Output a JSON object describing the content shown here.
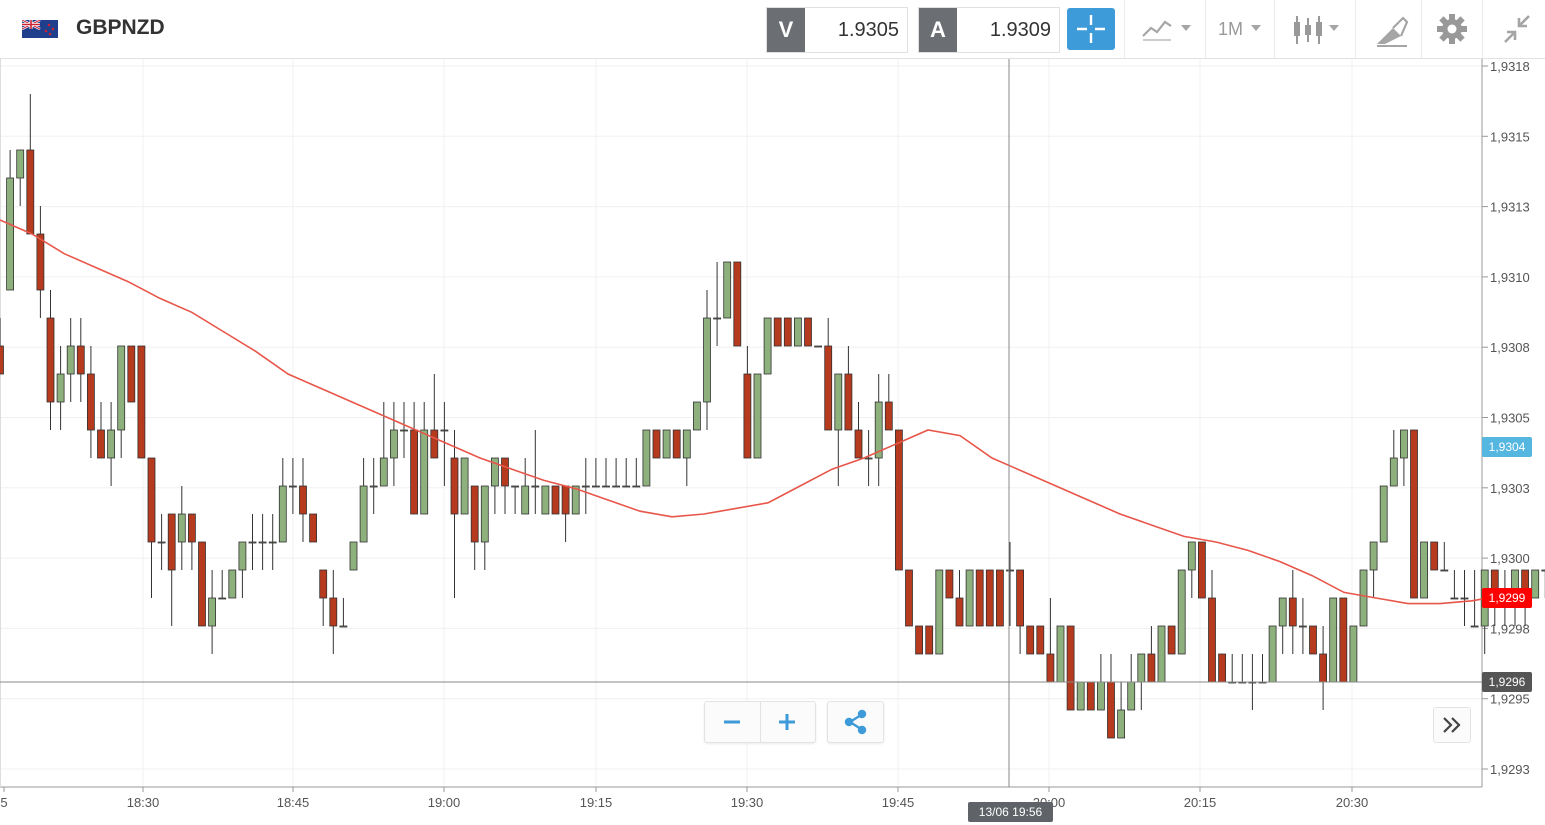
{
  "instrument": {
    "symbol": "GBPNZD",
    "flag_icon": "gb-nz-flag-icon"
  },
  "quotes": {
    "bid": {
      "label": "V",
      "value": "1.9305"
    },
    "ask": {
      "label": "A",
      "value": "1.9309"
    }
  },
  "toolbar": {
    "timeframe": "1M"
  },
  "price_axis": {
    "labels": [
      "1,9318",
      "1,9315",
      "1,9313",
      "1,9310",
      "1,9308",
      "1,9305",
      "1,9303",
      "1,9300",
      "1,9298",
      "1,9295",
      "1,9293"
    ]
  },
  "time_axis": {
    "labels": [
      "5",
      "18:30",
      "18:45",
      "19:00",
      "19:15",
      "19:30",
      "19:45",
      "20:00",
      "20:15",
      "20:30"
    ]
  },
  "markers": {
    "ma_last": "1,9304",
    "last_price": "1,9299",
    "crosshair_price": "1,9296",
    "crosshair_time": "13/06 19:56"
  },
  "colors": {
    "up": "#8db07d",
    "down": "#b53a1e",
    "ma": "#e8564a",
    "accent": "#3e9bd9",
    "last": "#ff0000",
    "ma_label": "#55b7e0"
  },
  "chart_data": {
    "type": "candlestick",
    "interval": "1M",
    "ylim": [
      1.9292,
      1.9318
    ],
    "candles": [
      [
        1.9308,
        1.9309,
        1.9307,
        1.9307
      ],
      [
        1.931,
        1.9315,
        1.931,
        1.9314
      ],
      [
        1.9314,
        1.9315,
        1.9313,
        1.9315
      ],
      [
        1.9315,
        1.9317,
        1.9312,
        1.9312
      ],
      [
        1.9312,
        1.9313,
        1.9309,
        1.931
      ],
      [
        1.9309,
        1.931,
        1.9305,
        1.9306
      ],
      [
        1.9306,
        1.9308,
        1.9305,
        1.9307
      ],
      [
        1.9307,
        1.9309,
        1.9306,
        1.9308
      ],
      [
        1.9308,
        1.9309,
        1.9306,
        1.9307
      ],
      [
        1.9307,
        1.9308,
        1.9304,
        1.9305
      ],
      [
        1.9305,
        1.9306,
        1.9304,
        1.9304
      ],
      [
        1.9304,
        1.9306,
        1.9303,
        1.9305
      ],
      [
        1.9305,
        1.9308,
        1.9304,
        1.9308
      ],
      [
        1.9308,
        1.9308,
        1.9306,
        1.9306
      ],
      [
        1.9308,
        1.9308,
        1.9304,
        1.9304
      ],
      [
        1.9304,
        1.9304,
        1.9299,
        1.9301
      ],
      [
        1.9301,
        1.9302,
        1.93,
        1.9301
      ],
      [
        1.9302,
        1.9302,
        1.9298,
        1.93
      ],
      [
        1.9301,
        1.9303,
        1.93,
        1.9302
      ],
      [
        1.9302,
        1.9302,
        1.93,
        1.9301
      ],
      [
        1.9301,
        1.9301,
        1.9298,
        1.9298
      ],
      [
        1.9298,
        1.93,
        1.9297,
        1.9299
      ],
      [
        1.9299,
        1.93,
        1.9299,
        1.9299
      ],
      [
        1.9299,
        1.93,
        1.9299,
        1.93
      ],
      [
        1.93,
        1.9301,
        1.9299,
        1.9301
      ],
      [
        1.9301,
        1.9302,
        1.93,
        1.9301
      ],
      [
        1.9301,
        1.9302,
        1.93,
        1.9301
      ],
      [
        1.9301,
        1.9302,
        1.93,
        1.9301
      ],
      [
        1.9301,
        1.9304,
        1.9301,
        1.9303
      ],
      [
        1.9303,
        1.9304,
        1.9302,
        1.9303
      ],
      [
        1.9303,
        1.9304,
        1.9301,
        1.9302
      ],
      [
        1.9302,
        1.9302,
        1.9301,
        1.9301
      ],
      [
        1.93,
        1.93,
        1.9298,
        1.9299
      ],
      [
        1.9299,
        1.93,
        1.9297,
        1.9298
      ],
      [
        1.9298,
        1.9299,
        1.9298,
        1.9298
      ],
      [
        1.93,
        1.9301,
        1.93,
        1.9301
      ],
      [
        1.9301,
        1.9304,
        1.9301,
        1.9303
      ],
      [
        1.9303,
        1.9304,
        1.9302,
        1.9303
      ],
      [
        1.9303,
        1.9306,
        1.9303,
        1.9304
      ],
      [
        1.9304,
        1.9306,
        1.9303,
        1.9305
      ],
      [
        1.9305,
        1.9306,
        1.9304,
        1.9305
      ],
      [
        1.9305,
        1.9306,
        1.9302,
        1.9302
      ],
      [
        1.9302,
        1.9306,
        1.9302,
        1.9305
      ],
      [
        1.9305,
        1.9307,
        1.9304,
        1.9304
      ],
      [
        1.9305,
        1.9306,
        1.9303,
        1.9305
      ],
      [
        1.9304,
        1.9305,
        1.9299,
        1.9302
      ],
      [
        1.9302,
        1.9304,
        1.9302,
        1.9304
      ],
      [
        1.9303,
        1.9303,
        1.93,
        1.9301
      ],
      [
        1.9301,
        1.9303,
        1.93,
        1.9303
      ],
      [
        1.9303,
        1.9304,
        1.9302,
        1.9304
      ],
      [
        1.9304,
        1.9304,
        1.9302,
        1.9303
      ],
      [
        1.9303,
        1.9303,
        1.9302,
        1.9303
      ],
      [
        1.9302,
        1.9304,
        1.9302,
        1.9303
      ],
      [
        1.9303,
        1.9305,
        1.9302,
        1.9303
      ],
      [
        1.9302,
        1.9303,
        1.9302,
        1.9303
      ],
      [
        1.9303,
        1.9303,
        1.9302,
        1.9302
      ],
      [
        1.9303,
        1.9303,
        1.9301,
        1.9302
      ],
      [
        1.9302,
        1.9303,
        1.9302,
        1.9303
      ],
      [
        1.9303,
        1.9304,
        1.9302,
        1.9303
      ],
      [
        1.9303,
        1.9304,
        1.9303,
        1.9303
      ],
      [
        1.9303,
        1.9304,
        1.9303,
        1.9303
      ],
      [
        1.9303,
        1.9304,
        1.9303,
        1.9303
      ],
      [
        1.9303,
        1.9304,
        1.9303,
        1.9303
      ],
      [
        1.9303,
        1.9304,
        1.9303,
        1.9303
      ],
      [
        1.9303,
        1.9305,
        1.9303,
        1.9305
      ],
      [
        1.9305,
        1.9305,
        1.9304,
        1.9304
      ],
      [
        1.9304,
        1.9305,
        1.9304,
        1.9305
      ],
      [
        1.9305,
        1.9305,
        1.9304,
        1.9304
      ],
      [
        1.9304,
        1.9305,
        1.9303,
        1.9305
      ],
      [
        1.9305,
        1.9306,
        1.9305,
        1.9306
      ],
      [
        1.9306,
        1.931,
        1.9305,
        1.9309
      ],
      [
        1.9309,
        1.9311,
        1.9308,
        1.9309
      ],
      [
        1.9309,
        1.9311,
        1.9309,
        1.9311
      ],
      [
        1.9311,
        1.9311,
        1.9308,
        1.9308
      ],
      [
        1.9307,
        1.9308,
        1.9304,
        1.9304
      ],
      [
        1.9304,
        1.9307,
        1.9304,
        1.9307
      ],
      [
        1.9307,
        1.9309,
        1.9307,
        1.9309
      ],
      [
        1.9309,
        1.9309,
        1.9308,
        1.9308
      ],
      [
        1.9309,
        1.9309,
        1.9308,
        1.9308
      ],
      [
        1.9308,
        1.9309,
        1.9308,
        1.9309
      ],
      [
        1.9309,
        1.9309,
        1.9308,
        1.9308
      ],
      [
        1.9308,
        1.9308,
        1.9308,
        1.9308
      ],
      [
        1.9308,
        1.9309,
        1.9305,
        1.9305
      ],
      [
        1.9305,
        1.9307,
        1.9303,
        1.9307
      ],
      [
        1.9307,
        1.9308,
        1.9305,
        1.9305
      ],
      [
        1.9305,
        1.9306,
        1.9304,
        1.9304
      ],
      [
        1.9304,
        1.9305,
        1.9303,
        1.9304
      ],
      [
        1.9304,
        1.9307,
        1.9303,
        1.9306
      ],
      [
        1.9306,
        1.9307,
        1.9305,
        1.9305
      ],
      [
        1.9305,
        1.9305,
        1.93,
        1.93
      ],
      [
        1.93,
        1.93,
        1.9298,
        1.9298
      ],
      [
        1.9298,
        1.9298,
        1.9297,
        1.9297
      ],
      [
        1.9298,
        1.9298,
        1.9297,
        1.9297
      ],
      [
        1.9297,
        1.93,
        1.9297,
        1.93
      ],
      [
        1.93,
        1.93,
        1.9299,
        1.9299
      ],
      [
        1.9299,
        1.93,
        1.9298,
        1.9298
      ],
      [
        1.9298,
        1.93,
        1.9298,
        1.93
      ],
      [
        1.93,
        1.93,
        1.9298,
        1.9298
      ],
      [
        1.93,
        1.93,
        1.9298,
        1.9298
      ],
      [
        1.93,
        1.93,
        1.9298,
        1.9298
      ],
      [
        1.93,
        1.9301,
        1.9298,
        1.93
      ],
      [
        1.93,
        1.93,
        1.9297,
        1.9298
      ],
      [
        1.9298,
        1.9298,
        1.9297,
        1.9297
      ],
      [
        1.9298,
        1.9298,
        1.9297,
        1.9297
      ],
      [
        1.9297,
        1.9299,
        1.9296,
        1.9296
      ],
      [
        1.9296,
        1.9298,
        1.9296,
        1.9298
      ],
      [
        1.9298,
        1.9298,
        1.9295,
        1.9295
      ],
      [
        1.9295,
        1.9296,
        1.9295,
        1.9296
      ],
      [
        1.9296,
        1.9296,
        1.9295,
        1.9295
      ],
      [
        1.9295,
        1.9297,
        1.9295,
        1.9296
      ],
      [
        1.9296,
        1.9297,
        1.9294,
        1.9294
      ],
      [
        1.9294,
        1.9296,
        1.9294,
        1.9295
      ],
      [
        1.9295,
        1.9297,
        1.9295,
        1.9296
      ],
      [
        1.9296,
        1.9297,
        1.9295,
        1.9297
      ],
      [
        1.9297,
        1.9298,
        1.9296,
        1.9296
      ],
      [
        1.9296,
        1.9298,
        1.9296,
        1.9298
      ],
      [
        1.9298,
        1.9298,
        1.9297,
        1.9297
      ],
      [
        1.9297,
        1.93,
        1.9297,
        1.93
      ],
      [
        1.93,
        1.9301,
        1.9299,
        1.9301
      ],
      [
        1.9301,
        1.9301,
        1.9299,
        1.9299
      ],
      [
        1.9299,
        1.93,
        1.9296,
        1.9296
      ],
      [
        1.9297,
        1.9297,
        1.9296,
        1.9296
      ],
      [
        1.9296,
        1.9297,
        1.9296,
        1.9296
      ],
      [
        1.9296,
        1.9297,
        1.9296,
        1.9296
      ],
      [
        1.9296,
        1.9297,
        1.9295,
        1.9296
      ],
      [
        1.9296,
        1.9297,
        1.9296,
        1.9296
      ],
      [
        1.9296,
        1.9298,
        1.9296,
        1.9298
      ],
      [
        1.9298,
        1.9299,
        1.9297,
        1.9299
      ],
      [
        1.9299,
        1.93,
        1.9297,
        1.9298
      ],
      [
        1.9298,
        1.9299,
        1.9297,
        1.9298
      ],
      [
        1.9298,
        1.9298,
        1.9297,
        1.9297
      ],
      [
        1.9297,
        1.9298,
        1.9295,
        1.9296
      ],
      [
        1.9296,
        1.9299,
        1.9296,
        1.9299
      ],
      [
        1.9299,
        1.9299,
        1.9296,
        1.9296
      ],
      [
        1.9296,
        1.9298,
        1.9296,
        1.9298
      ],
      [
        1.9298,
        1.93,
        1.9298,
        1.93
      ],
      [
        1.93,
        1.9301,
        1.9299,
        1.9301
      ],
      [
        1.9301,
        1.9303,
        1.9301,
        1.9303
      ],
      [
        1.9303,
        1.9305,
        1.9303,
        1.9304
      ],
      [
        1.9304,
        1.9305,
        1.9303,
        1.9305
      ],
      [
        1.9305,
        1.9305,
        1.9299,
        1.9299
      ],
      [
        1.9299,
        1.9301,
        1.9299,
        1.9301
      ],
      [
        1.9301,
        1.9301,
        1.93,
        1.93
      ],
      [
        1.93,
        1.9301,
        1.93,
        1.93
      ],
      [
        1.9299,
        1.93,
        1.9299,
        1.9299
      ],
      [
        1.9299,
        1.93,
        1.9298,
        1.9299
      ],
      [
        1.9298,
        1.93,
        1.9298,
        1.9298
      ],
      [
        1.9298,
        1.93,
        1.9297,
        1.93
      ],
      [
        1.93,
        1.93,
        1.9298,
        1.9299
      ],
      [
        1.9299,
        1.93,
        1.9298,
        1.9299
      ],
      [
        1.9299,
        1.93,
        1.9298,
        1.93
      ],
      [
        1.93,
        1.93,
        1.9298,
        1.9299
      ],
      [
        1.9299,
        1.93,
        1.9299,
        1.93
      ],
      [
        1.93,
        1.93,
        1.9299,
        1.93
      ],
      [
        1.93,
        1.9302,
        1.93,
        1.9302
      ],
      [
        1.9301,
        1.9302,
        1.93,
        1.9301
      ]
    ],
    "ma": [
      1.93125,
      1.9312,
      1.93113,
      1.93108,
      1.93103,
      1.93097,
      1.93092,
      1.93085,
      1.93078,
      1.9307,
      1.93065,
      1.9306,
      1.93055,
      1.9305,
      1.93045,
      1.9304,
      1.93036,
      1.93032,
      1.93029,
      1.93025,
      1.93021,
      1.93019,
      1.9302,
      1.93022,
      1.93024,
      1.9303,
      1.93036,
      1.9304,
      1.93045,
      1.9305,
      1.93048,
      1.9304,
      1.93035,
      1.9303,
      1.93025,
      1.9302,
      1.93016,
      1.93012,
      1.9301,
      1.93007,
      1.93003,
      1.92998,
      1.92992,
      1.9299,
      1.92988,
      1.92988,
      1.92989,
      1.92991
    ],
    "ma_x_start": 0,
    "ma_x_step": 32,
    "crosshair": {
      "price": 1.9296,
      "time": "13/06 19:56"
    }
  }
}
